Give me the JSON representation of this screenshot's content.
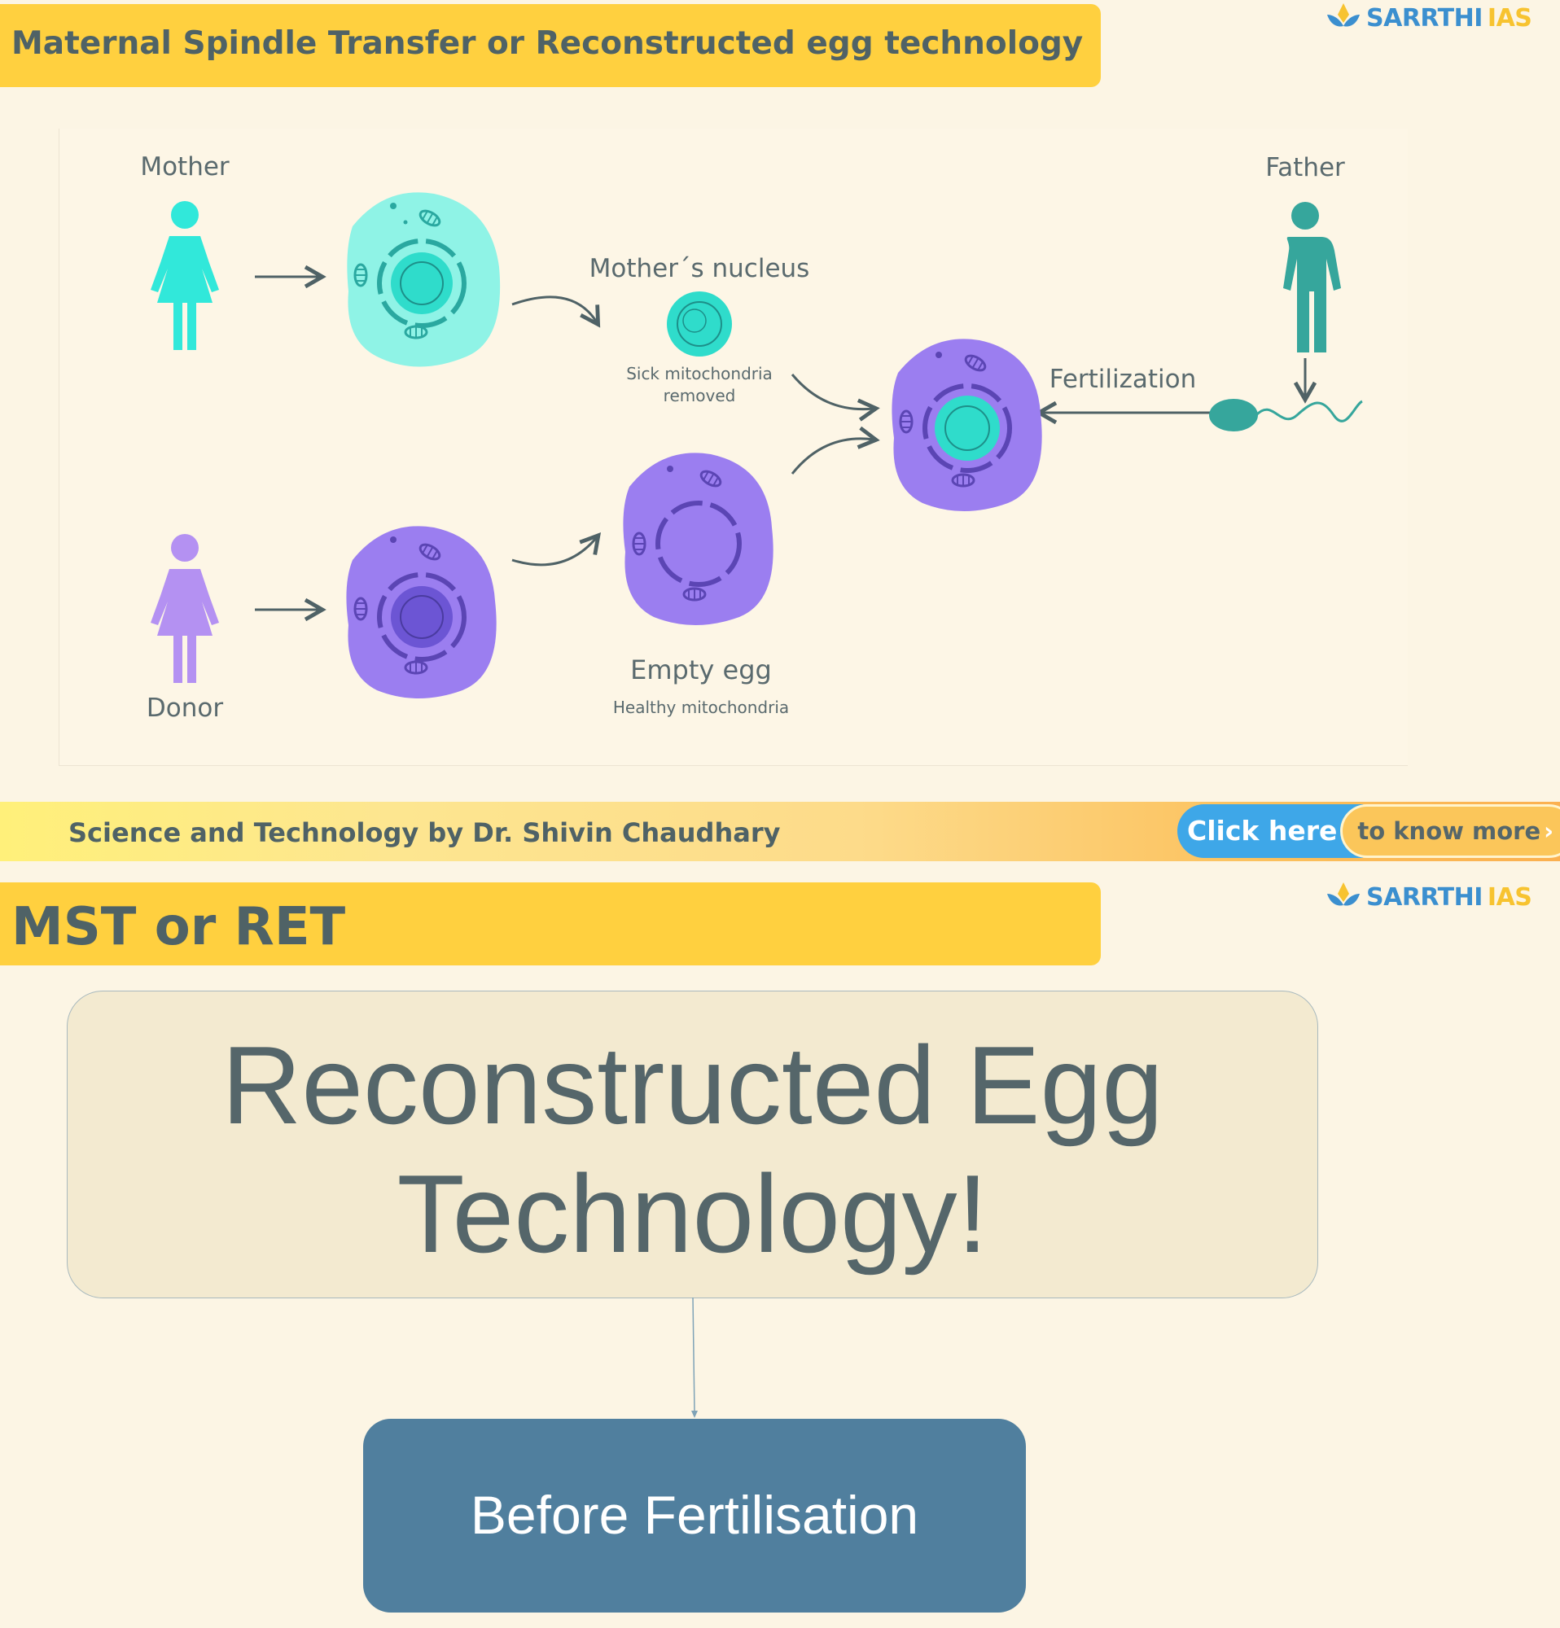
{
  "slide1": {
    "title": "Maternal Spindle Transfer or Reconstructed egg technology",
    "logo_part1": "SARRTHI",
    "logo_part2": "IAS"
  },
  "diagram": {
    "mother_label": "Mother",
    "father_label": "Father",
    "donor_label": "Donor",
    "mothers_nucleus_label": "Mother´s nucleus",
    "sick_mito_line1": "Sick mitochondria",
    "sick_mito_line2": "removed",
    "fertilization_label": "Fertilization",
    "empty_egg_label": "Empty egg",
    "healthy_mito_label": "Healthy mitochondria",
    "colors": {
      "mother": "#31e8da",
      "donor": "#b491f2",
      "father": "#36a69c",
      "egg_cyan": "#8ff3e6",
      "egg_purple": "#9b7ef0",
      "arrow": "#4f6266"
    }
  },
  "footer": {
    "text": "Science and Technology by Dr. Shivin Chaudhary",
    "click_here": "Click here",
    "know_more": "to know more",
    "know_more_chevron": "›"
  },
  "slide2": {
    "title": "MST or RET",
    "logo_part1": "SARRTHI",
    "logo_part2": "IAS",
    "main_box_line1": "Reconstructed Egg",
    "main_box_line2": "Technology!",
    "child_box": "Before Fertilisation"
  }
}
